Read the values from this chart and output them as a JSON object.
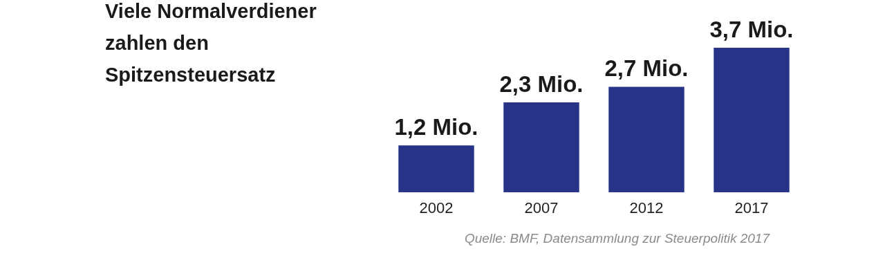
{
  "chart_data": {
    "type": "bar",
    "title": "Viele Normalverdiener zahlen den Spitzensteuersatz",
    "categories": [
      "2002",
      "2007",
      "2012",
      "2017"
    ],
    "values": [
      1.2,
      2.3,
      2.7,
      3.7
    ],
    "value_labels": [
      "1,2 Mio.",
      "2,3 Mio.",
      "2,7 Mio.",
      "3,7 Mio."
    ],
    "color": "#283488",
    "annotations": [
      "Quelle: BMF, Datensammlung zur Steuerpolitik 2017"
    ]
  }
}
